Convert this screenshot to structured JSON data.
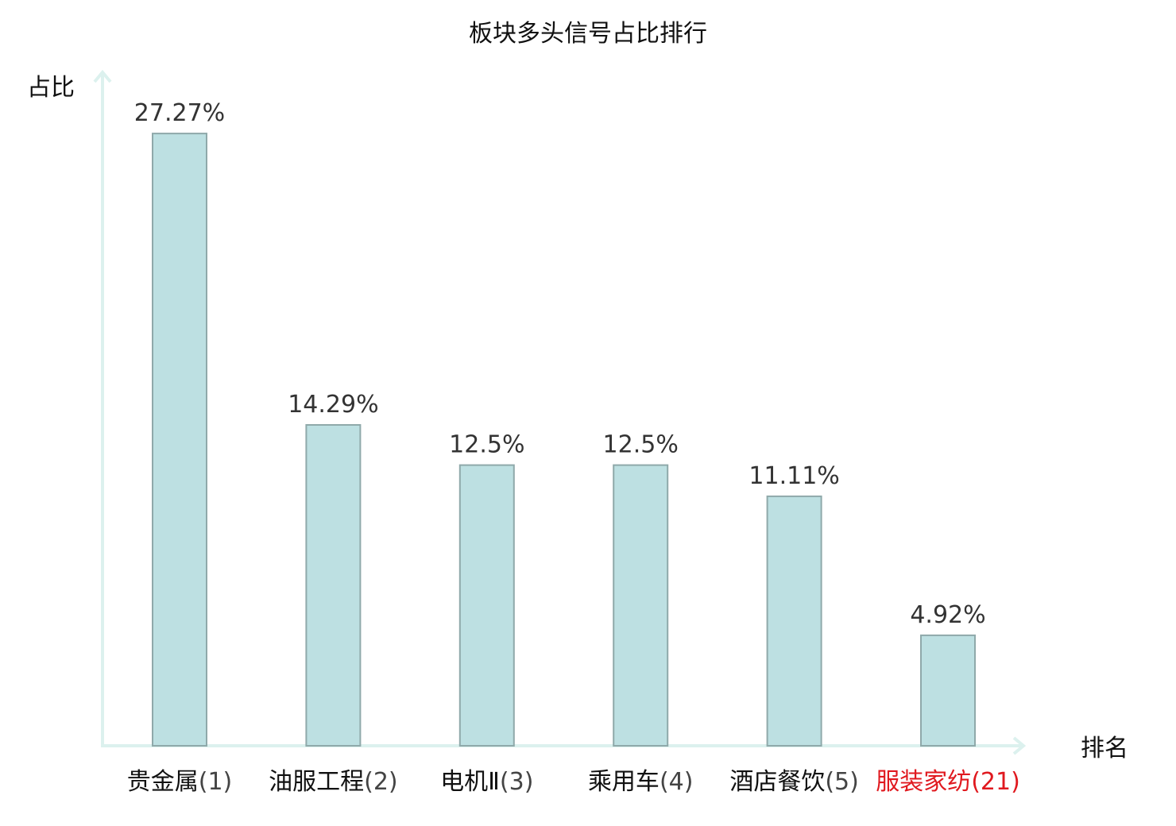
{
  "chart_data": {
    "type": "bar",
    "title": "板块多头信号占比排行",
    "xlabel": "排名",
    "ylabel": "占比",
    "ylim": [
      0,
      30
    ],
    "grid": false,
    "value_unit": "%",
    "categories": [
      "贵金属(1)",
      "油服工程(2)",
      "电机Ⅱ(3)",
      "乘用车(4)",
      "酒店餐饮(5)",
      "服装家纺(21)"
    ],
    "category_names": [
      "贵金属",
      "油服工程",
      "电机Ⅱ",
      "乘用车",
      "酒店餐饮",
      "服装家纺"
    ],
    "category_ranks": [
      "(1)",
      "(2)",
      "(3)",
      "(4)",
      "(5)",
      "(21)"
    ],
    "highlighted": [
      false,
      false,
      false,
      false,
      false,
      true
    ],
    "values": [
      27.27,
      14.29,
      12.5,
      12.5,
      11.11,
      4.92
    ],
    "value_labels": [
      "27.27%",
      "14.29%",
      "12.5%",
      "12.5%",
      "11.11%",
      "4.92%"
    ],
    "colors": {
      "bar": "#bde0e2",
      "bar_border": "#8fa9aa",
      "axis": "#dcf1ee",
      "highlight_text": "#e0191f"
    }
  }
}
